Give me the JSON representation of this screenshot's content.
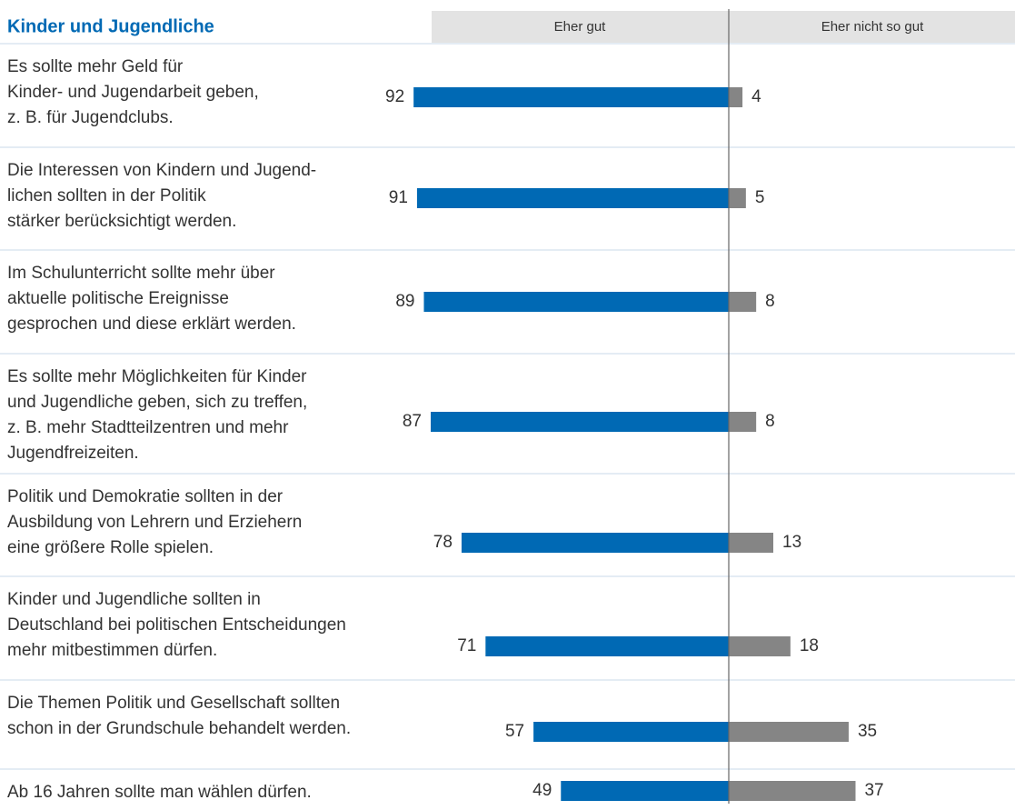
{
  "chart_data": {
    "type": "diverging-bar",
    "title": "Kinder und Jugendliche",
    "categories": [
      [
        "Es sollte mehr Geld für",
        "Kinder- und Jugendarbeit geben,",
        "z. B. für Jugendclubs."
      ],
      [
        "Die Interessen von Kindern und Jugend-",
        "lichen sollten in der Politik",
        "stärker berücksichtigt werden."
      ],
      [
        "Im Schulunterricht sollte mehr über",
        "aktuelle politische Ereignisse",
        "gesprochen und diese erklärt werden."
      ],
      [
        "Es sollte mehr Möglichkeiten für Kinder",
        "und Jugendliche geben, sich zu treffen,",
        "z. B. mehr Stadtteilzentren und mehr",
        "Jugendfreizeiten."
      ],
      [
        "Politik und Demokratie sollten in der",
        "Ausbildung von Lehrern und Erziehern",
        "eine größere Rolle spielen."
      ],
      [
        "Kinder und Jugendliche sollten in",
        "Deutschland bei politischen Entscheidungen",
        "mehr mitbestimmen dürfen."
      ],
      [
        "Die Themen Politik und Gesellschaft sollten",
        "schon in der Grundschule behandelt werden."
      ],
      [
        "Ab 16 Jahren sollte man wählen dürfen."
      ]
    ],
    "series": [
      {
        "name": "Eher gut",
        "color": "#0069b4",
        "values": [
          92,
          91,
          89,
          87,
          78,
          71,
          57,
          49
        ]
      },
      {
        "name": "Eher nicht so gut",
        "color": "#858585",
        "values": [
          4,
          5,
          8,
          8,
          13,
          18,
          35,
          37
        ]
      }
    ]
  }
}
